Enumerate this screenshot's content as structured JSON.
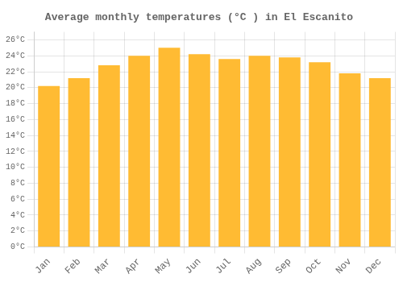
{
  "chart_data": {
    "type": "bar",
    "title": "Average monthly temperatures (°C ) in El Escanito",
    "categories": [
      "Jan",
      "Feb",
      "Mar",
      "Apr",
      "May",
      "Jun",
      "Jul",
      "Aug",
      "Sep",
      "Oct",
      "Nov",
      "Dec"
    ],
    "values": [
      20.2,
      21.2,
      22.8,
      24.0,
      25.0,
      24.2,
      23.6,
      24.0,
      23.8,
      23.2,
      21.8,
      21.2
    ],
    "color": "#FFBB33",
    "ylim": [
      0,
      27
    ],
    "yticks": [
      {
        "value": 0,
        "label": "0°C"
      },
      {
        "value": 2,
        "label": "2°C"
      },
      {
        "value": 4,
        "label": "4°C"
      },
      {
        "value": 6,
        "label": "6°C"
      },
      {
        "value": 8,
        "label": "8°C"
      },
      {
        "value": 10,
        "label": "10°C"
      },
      {
        "value": 12,
        "label": "12°C"
      },
      {
        "value": 14,
        "label": "14°C"
      },
      {
        "value": 16,
        "label": "16°C"
      },
      {
        "value": 18,
        "label": "18°C"
      },
      {
        "value": 20,
        "label": "20°C"
      },
      {
        "value": 22,
        "label": "22°C"
      },
      {
        "value": 24,
        "label": "24°C"
      },
      {
        "value": 26,
        "label": "26°C"
      }
    ],
    "grid": true
  }
}
